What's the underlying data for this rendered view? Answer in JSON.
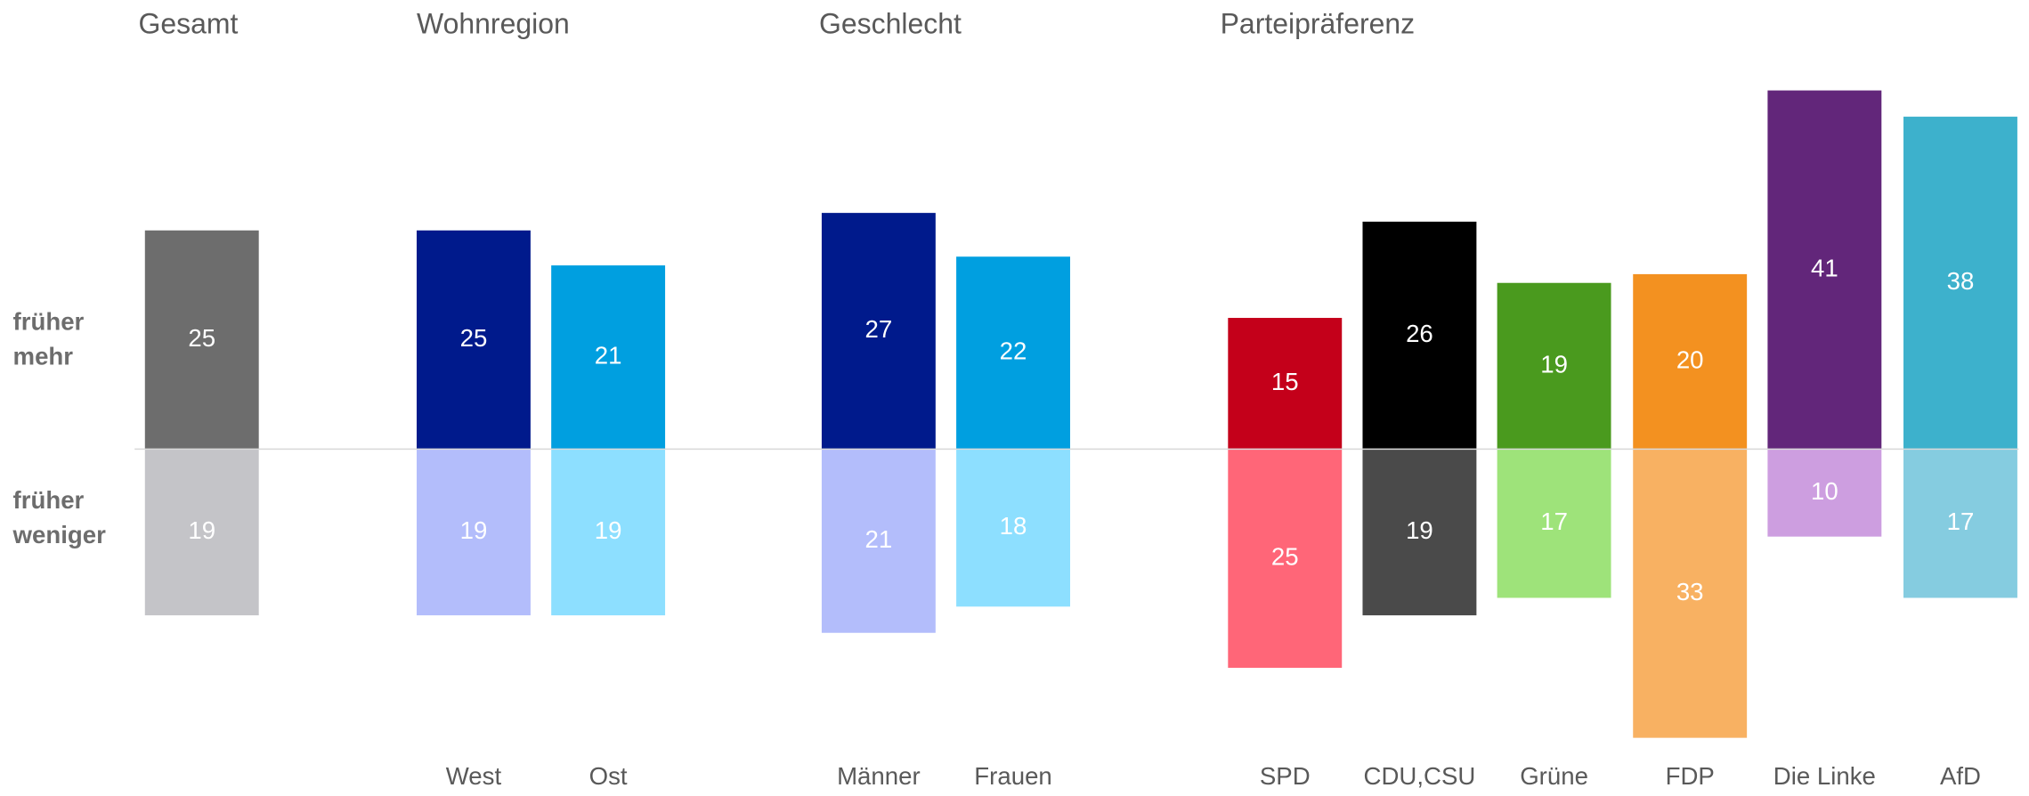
{
  "chart_data": {
    "type": "diverging_bar",
    "groups": [
      "Gesamt",
      "Wohnregion",
      "Geschlecht",
      "Parteipräferenz"
    ],
    "categories": [
      null,
      "West",
      "Ost",
      "Männer",
      "Frauen",
      "SPD",
      "CDU,CSU",
      "Grüne",
      "FDP",
      "Die Linke",
      "AfD"
    ],
    "series": [
      {
        "name": "früher mehr",
        "values": [
          25,
          25,
          21,
          27,
          22,
          15,
          26,
          19,
          20,
          41,
          38
        ],
        "colors": [
          "#6d6d6d",
          "#001a8c",
          "#009fe0",
          "#001a8c",
          "#009fe0",
          "#c4001a",
          "#000000",
          "#4a9a1e",
          "#f39120",
          "#62267a",
          "#3db1cc"
        ]
      },
      {
        "name": "früher weniger",
        "values": [
          19,
          19,
          19,
          21,
          18,
          25,
          19,
          17,
          33,
          10,
          17
        ],
        "colors": [
          "#c4c4c8",
          "#b3bdfb",
          "#8ddfff",
          "#b3bdfb",
          "#8ddfff",
          "#ff6678",
          "#4a4a4a",
          "#9ee37a",
          "#f8b162",
          "#cd9ee0",
          "#85cce0"
        ]
      }
    ]
  }
}
